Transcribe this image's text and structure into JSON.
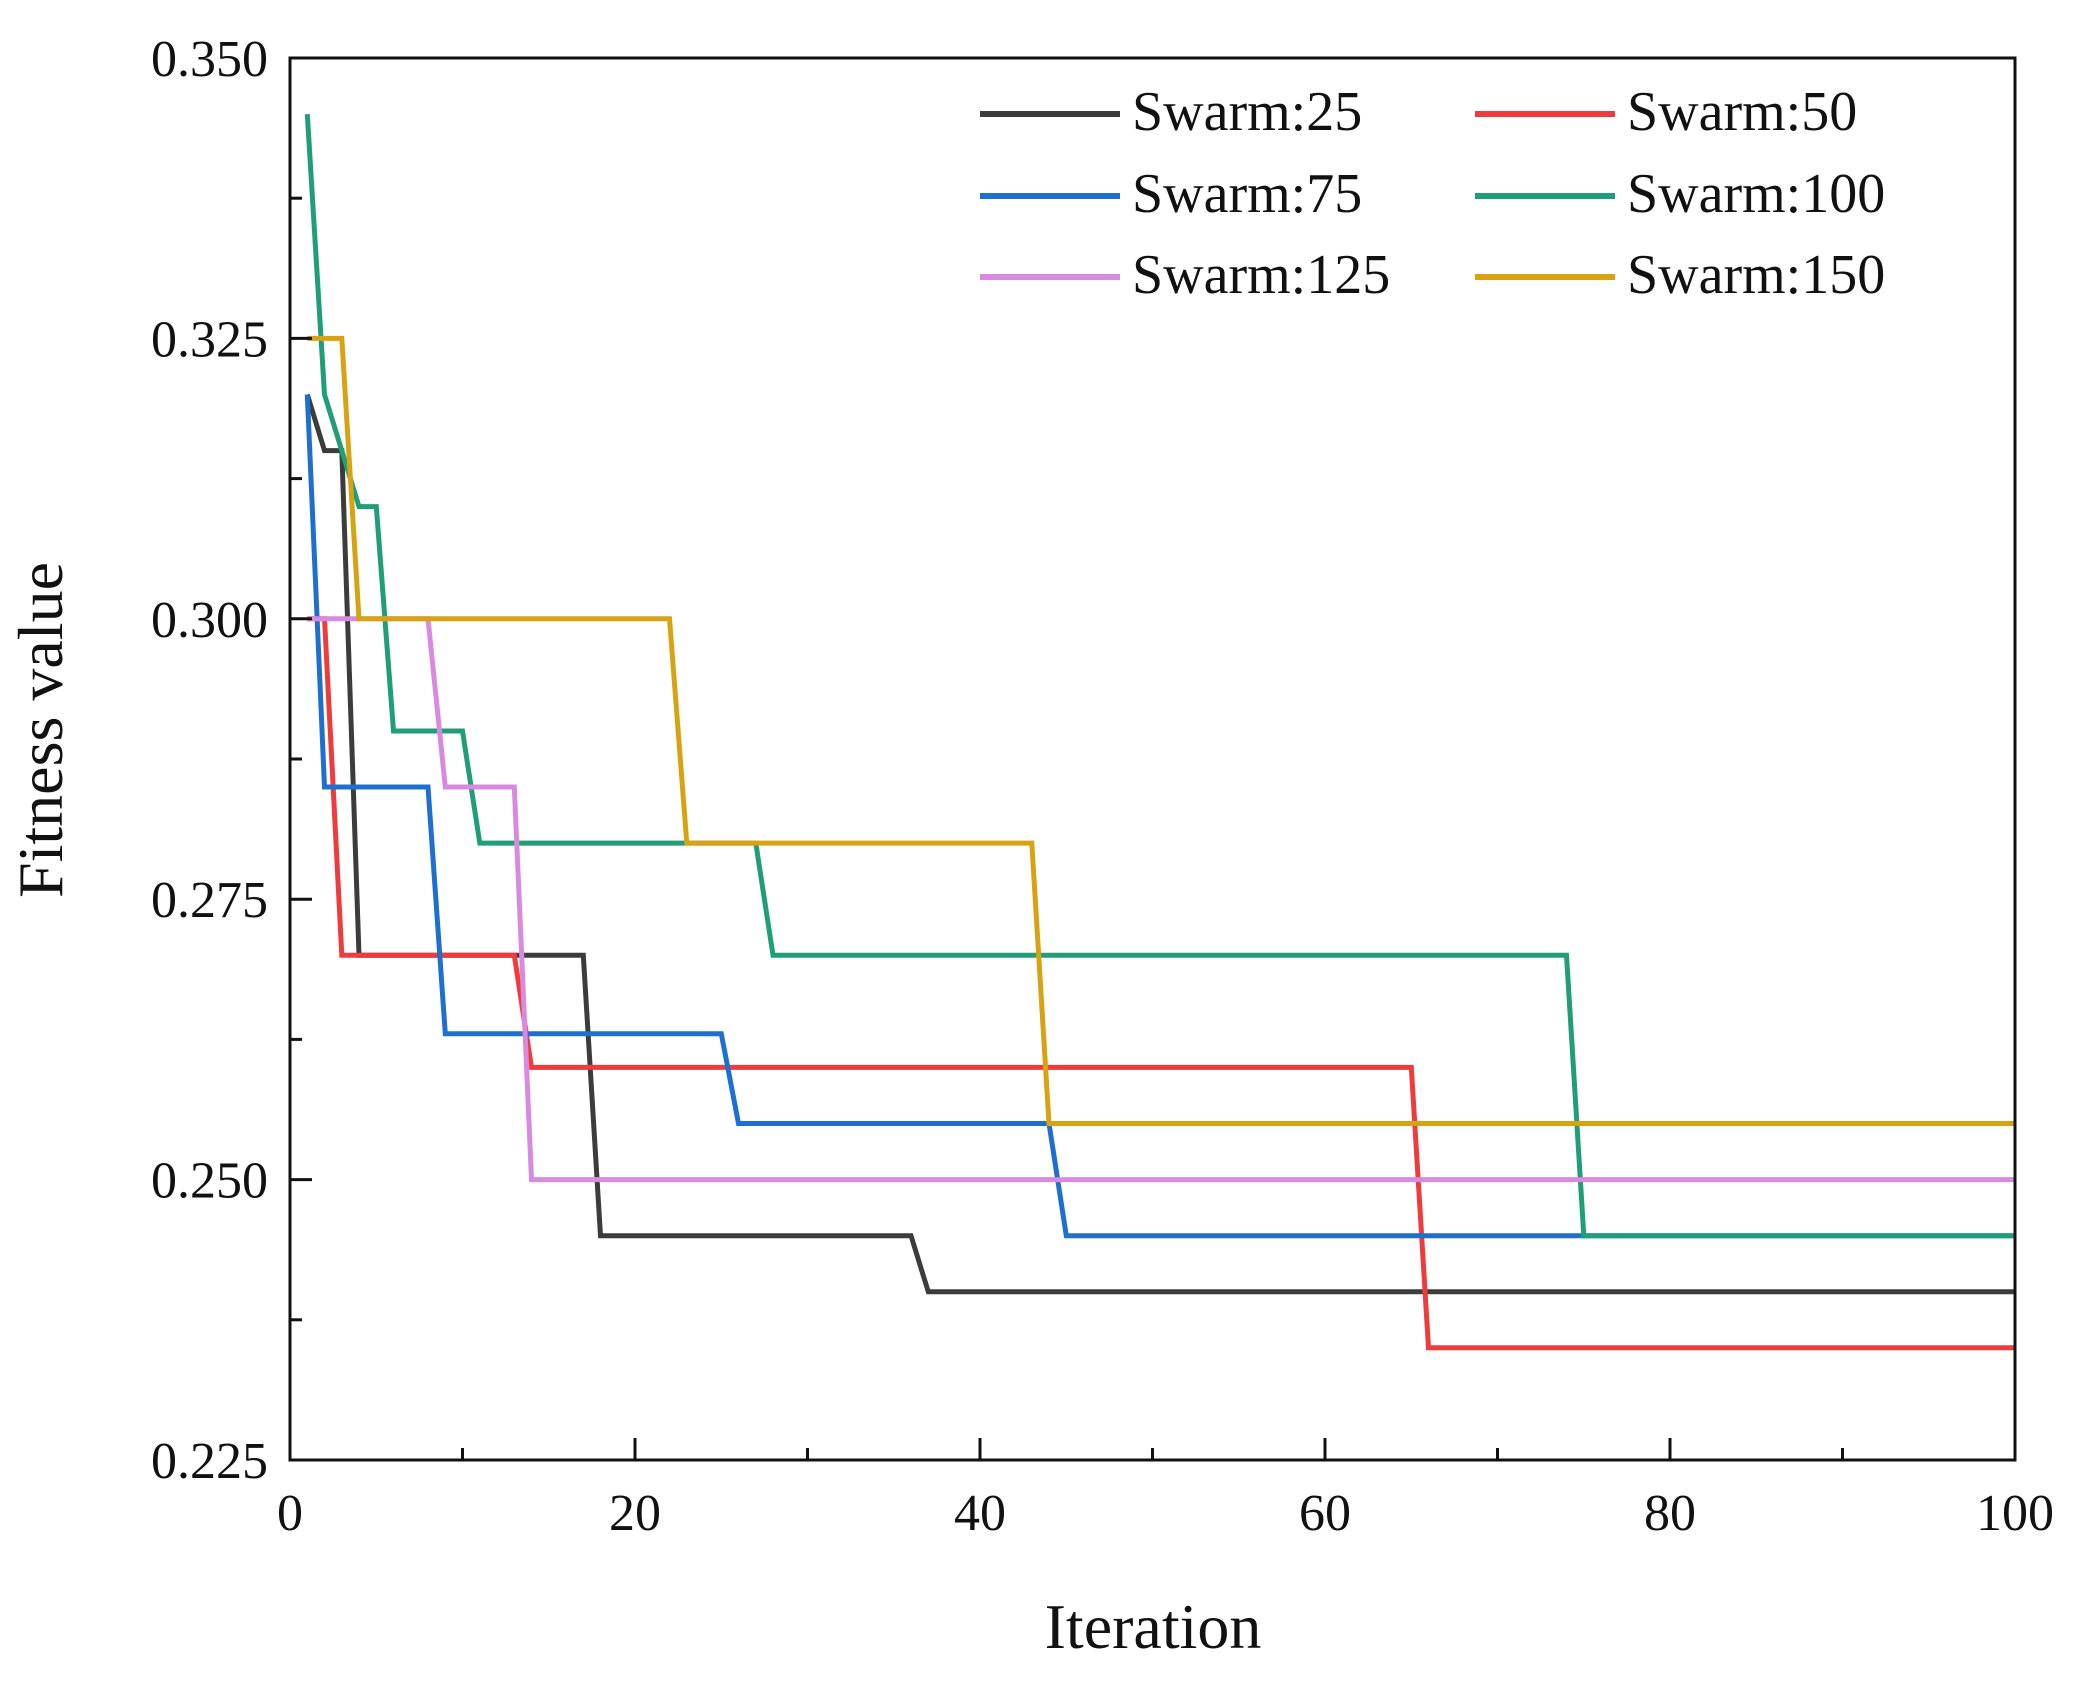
{
  "chart_data": {
    "type": "line",
    "title": "",
    "xlabel": "Iteration",
    "ylabel": "Fitness value",
    "xlim": [
      0,
      100
    ],
    "ylim": [
      0.225,
      0.35
    ],
    "x_ticks": [
      0,
      20,
      40,
      60,
      80,
      100
    ],
    "x_tick_labels": [
      "0",
      "20",
      "40",
      "60",
      "80",
      "100"
    ],
    "y_ticks": [
      0.225,
      0.25,
      0.275,
      0.3,
      0.325,
      0.35
    ],
    "y_tick_labels": [
      "0.225",
      "0.250",
      "0.275",
      "0.300",
      "0.325",
      "0.350"
    ],
    "grid": false,
    "legend_position": "top-right",
    "series": [
      {
        "name": "Swarm:25",
        "color": "#3c3c3c",
        "x": [
          1,
          2,
          3,
          4,
          17,
          18,
          36,
          37,
          100
        ],
        "y": [
          0.32,
          0.315,
          0.315,
          0.27,
          0.27,
          0.245,
          0.245,
          0.24,
          0.24
        ]
      },
      {
        "name": "Swarm:50",
        "color": "#ee3b3b",
        "x": [
          1,
          2,
          3,
          13,
          14,
          65,
          66,
          100
        ],
        "y": [
          0.3,
          0.3,
          0.27,
          0.27,
          0.26,
          0.26,
          0.235,
          0.235
        ]
      },
      {
        "name": "Swarm:75",
        "color": "#1f6fd1",
        "x": [
          1,
          2,
          8,
          9,
          25,
          26,
          44,
          45,
          100
        ],
        "y": [
          0.32,
          0.285,
          0.285,
          0.263,
          0.263,
          0.255,
          0.255,
          0.245,
          0.245
        ]
      },
      {
        "name": "Swarm:100",
        "color": "#1f9e78",
        "x": [
          1,
          2,
          3,
          4,
          5,
          6,
          10,
          11,
          27,
          28,
          74,
          75,
          100
        ],
        "y": [
          0.345,
          0.32,
          0.315,
          0.31,
          0.31,
          0.29,
          0.29,
          0.28,
          0.28,
          0.27,
          0.27,
          0.245,
          0.245
        ]
      },
      {
        "name": "Swarm:125",
        "color": "#d88ae0",
        "x": [
          1,
          8,
          9,
          13,
          14,
          100
        ],
        "y": [
          0.3,
          0.3,
          0.285,
          0.285,
          0.25,
          0.25
        ]
      },
      {
        "name": "Swarm:150",
        "color": "#d8a312",
        "x": [
          1,
          3,
          4,
          22,
          23,
          43,
          44,
          100
        ],
        "y": [
          0.325,
          0.325,
          0.3,
          0.3,
          0.28,
          0.28,
          0.255,
          0.255
        ]
      }
    ]
  }
}
